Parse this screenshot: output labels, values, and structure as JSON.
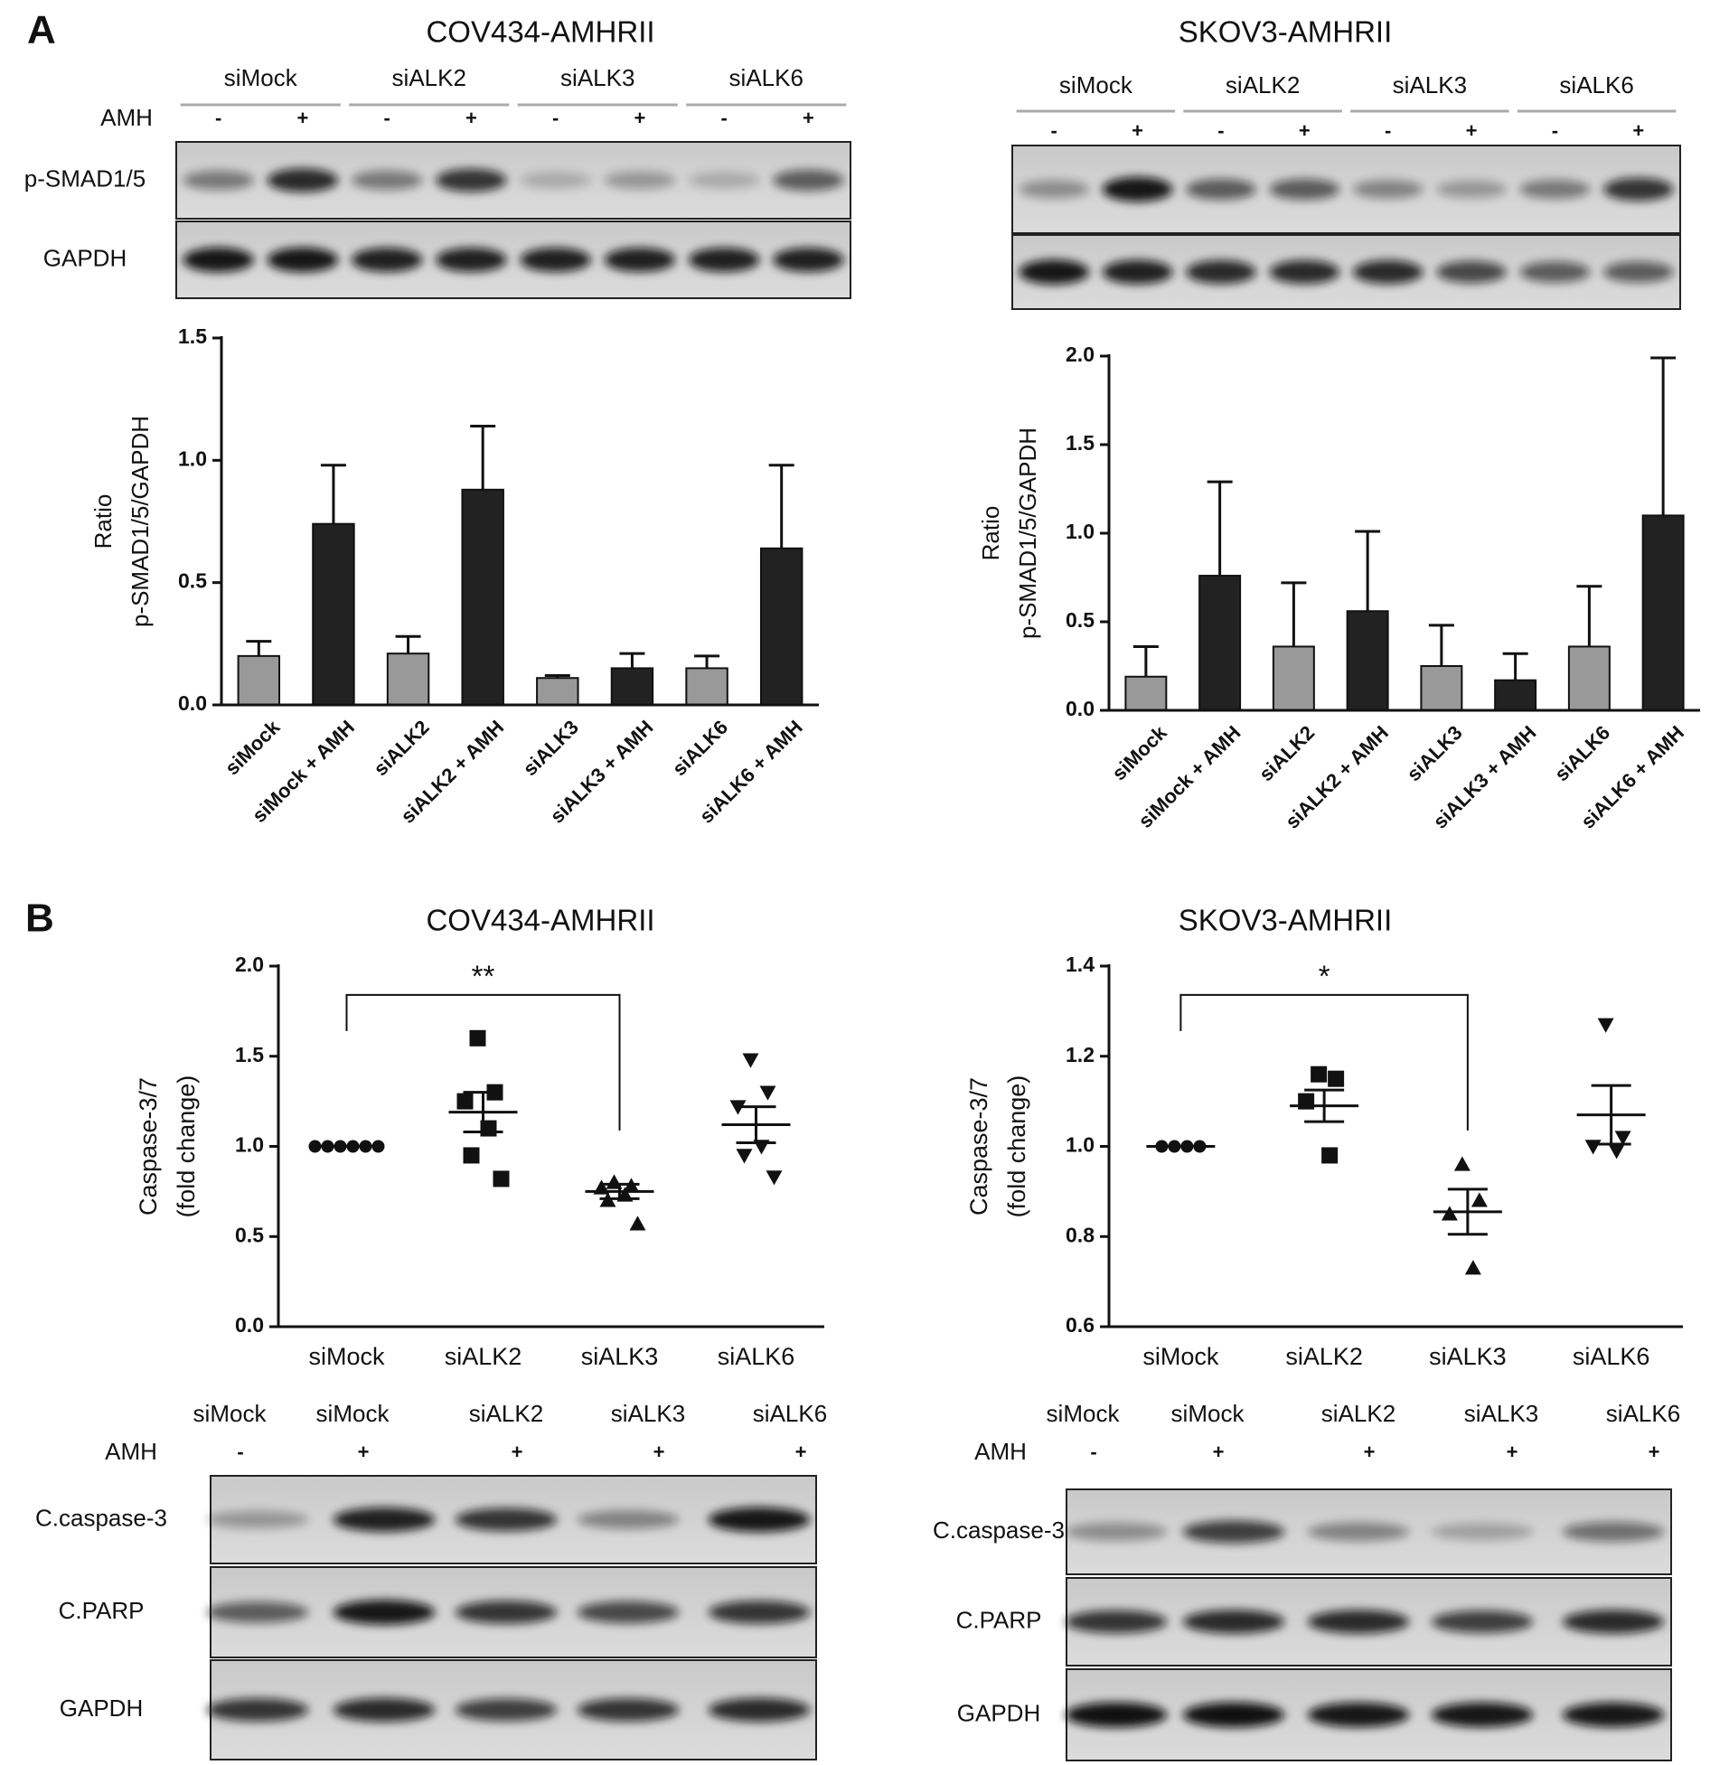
{
  "panels": [
    "A",
    "B"
  ],
  "blots": [
    {
      "title": "COV434-AMHRII",
      "groups": [
        "siMock",
        "siALK2",
        "siALK3",
        "siALK6"
      ],
      "treatment": "AMH",
      "signs": [
        "-",
        "+",
        "-",
        "+",
        "-",
        "+",
        "-",
        "+"
      ],
      "rows": [
        "p-SMAD1/5",
        "GAPDH"
      ]
    },
    {
      "title": "SKOV3-AMHRII",
      "groups": [
        "siMock",
        "siALK2",
        "siALK3",
        "siALK6"
      ],
      "signs": [
        "-",
        "+",
        "-",
        "+",
        "-",
        "+",
        "-",
        "+"
      ]
    },
    {
      "lanes": [
        "siMock",
        "siMock",
        "siALK2",
        "siALK3",
        "siALK6"
      ],
      "treatment": "AMH",
      "signs": [
        "-",
        "+",
        "+",
        "+",
        "+"
      ],
      "rows": [
        "C.caspase-3",
        "C.PARP",
        "GAPDH"
      ]
    },
    {
      "lanes": [
        "siMock",
        "siMock",
        "siALK2",
        "siALK3",
        "siALK6"
      ],
      "treatment": "AMH",
      "signs": [
        "-",
        "+",
        "+",
        "+",
        "+"
      ],
      "rows": [
        "C.caspase-3",
        "C.PARP",
        "GAPDH"
      ]
    }
  ],
  "chart_data": [
    {
      "type": "bar",
      "ylabel": [
        "Ratio",
        "p-SMAD1/5/GAPDH"
      ],
      "categories": [
        "siMock",
        "siMock + AMH",
        "siALK2",
        "siALK2 + AMH",
        "siALK3",
        "siALK3 + AMH",
        "siALK6",
        "siALK6 + AMH"
      ],
      "values": [
        0.2,
        0.74,
        0.21,
        0.88,
        0.11,
        0.15,
        0.15,
        0.64
      ],
      "errors": [
        0.06,
        0.24,
        0.07,
        0.26,
        0.01,
        0.06,
        0.05,
        0.34
      ],
      "colors": [
        "#999999",
        "#222222",
        "#999999",
        "#222222",
        "#999999",
        "#222222",
        "#999999",
        "#222222"
      ],
      "ylim": [
        0,
        1.5
      ],
      "yticks": [
        {
          "value": 0,
          "label": "0.0"
        },
        0.5,
        {
          "value": 1,
          "label": "1.0"
        },
        1.5
      ]
    },
    {
      "type": "bar",
      "ylabel": [
        "Ratio",
        "p-SMAD1/5/GAPDH"
      ],
      "categories": [
        "siMock",
        "siMock + AMH",
        "siALK2",
        "siALK2 + AMH",
        "siALK3",
        "siALK3 + AMH",
        "siALK6",
        "siALK6 + AMH"
      ],
      "values": [
        0.19,
        0.76,
        0.36,
        0.56,
        0.25,
        0.17,
        0.36,
        1.1
      ],
      "errors": [
        0.17,
        0.53,
        0.36,
        0.45,
        0.23,
        0.15,
        0.34,
        0.89
      ],
      "colors": [
        "#999999",
        "#222222",
        "#999999",
        "#222222",
        "#999999",
        "#222222",
        "#999999",
        "#222222"
      ],
      "ylim": [
        0,
        2
      ],
      "yticks": [
        {
          "value": 0,
          "label": "0.0"
        },
        0.5,
        {
          "value": 1,
          "label": "1.0"
        },
        1.5,
        {
          "value": 2,
          "label": "2.0"
        }
      ]
    },
    {
      "type": "dotplot",
      "title": "COV434-AMHRII",
      "ylabel": [
        "Caspase-3/7",
        "(fold change)"
      ],
      "categories": [
        "siMock",
        "siALK2",
        "siALK3",
        "siALK6"
      ],
      "markers": [
        "circle",
        "square",
        "triangle",
        "down-triangle"
      ],
      "points": [
        [
          1,
          1,
          1,
          1,
          1,
          1
        ],
        [
          1.6,
          1.3,
          1.25,
          1.1,
          0.95,
          0.82
        ],
        [
          0.8,
          0.78,
          0.77,
          0.73,
          0.7,
          0.57
        ],
        [
          1.48,
          1.3,
          1.22,
          1.0,
          0.95,
          0.83
        ]
      ],
      "means": [
        1,
        1.19,
        0.75,
        1.12
      ],
      "sems": [
        0,
        0.11,
        0.04,
        0.1
      ],
      "annotation": "**",
      "ylim": [
        0,
        2
      ],
      "yticks": [
        {
          "value": 0,
          "label": "0.0"
        },
        0.5,
        {
          "value": 1,
          "label": "1.0"
        },
        1.5,
        {
          "value": 2,
          "label": "2.0"
        }
      ]
    },
    {
      "type": "dotplot",
      "title": "SKOV3-AMHRII",
      "ylabel": [
        "Caspase-3/7",
        "(fold change)"
      ],
      "categories": [
        "siMock",
        "siALK2",
        "siALK3",
        "siALK6"
      ],
      "markers": [
        "circle",
        "square",
        "triangle",
        "down-triangle"
      ],
      "points": [
        [
          1,
          1,
          1,
          1
        ],
        [
          1.16,
          1.15,
          1.1,
          0.98
        ],
        [
          0.96,
          0.88,
          0.85,
          0.73
        ],
        [
          1.27,
          1.02,
          1.0,
          0.99
        ]
      ],
      "means": [
        1,
        1.09,
        0.855,
        1.07
      ],
      "sems": [
        0,
        0.035,
        0.05,
        0.065
      ],
      "annotation": "*",
      "ylim": [
        0.6,
        1.4
      ],
      "yticks": [
        0.6,
        0.8,
        {
          "value": 1,
          "label": "1.0"
        },
        1.2,
        1.4
      ]
    }
  ]
}
